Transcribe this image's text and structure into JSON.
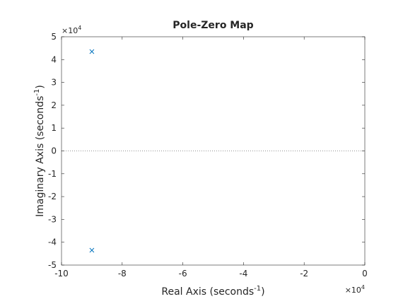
{
  "chart_data": {
    "type": "scatter",
    "title": "Pole-Zero Map",
    "xlabel": "Real Axis (seconds",
    "ylabel": "Imaginary Axis (seconds",
    "label_superscript": "-1",
    "label_close": ")",
    "x_exponent": "×10",
    "y_exponent": "×10",
    "exponent_power": "4",
    "xlim": [
      -100000,
      0
    ],
    "ylim": [
      -50000,
      50000
    ],
    "xticks": [
      -100000,
      -80000,
      -60000,
      -40000,
      -20000,
      0
    ],
    "xtick_labels": [
      "-10",
      "-8",
      "-6",
      "-4",
      "-2",
      "0"
    ],
    "yticks": [
      50000,
      40000,
      30000,
      20000,
      10000,
      0,
      -10000,
      -20000,
      -30000,
      -40000,
      -50000
    ],
    "ytick_labels": [
      "5",
      "4",
      "3",
      "2",
      "1",
      "0",
      "-1",
      "-2",
      "-3",
      "-4",
      "-5"
    ],
    "grid": false,
    "marker": "x",
    "marker_color": "#0072bd",
    "zero_line": true,
    "series": [
      {
        "points": [
          {
            "x": -90000,
            "y": 43500
          },
          {
            "x": -90000,
            "y": -43500
          }
        ]
      }
    ]
  }
}
